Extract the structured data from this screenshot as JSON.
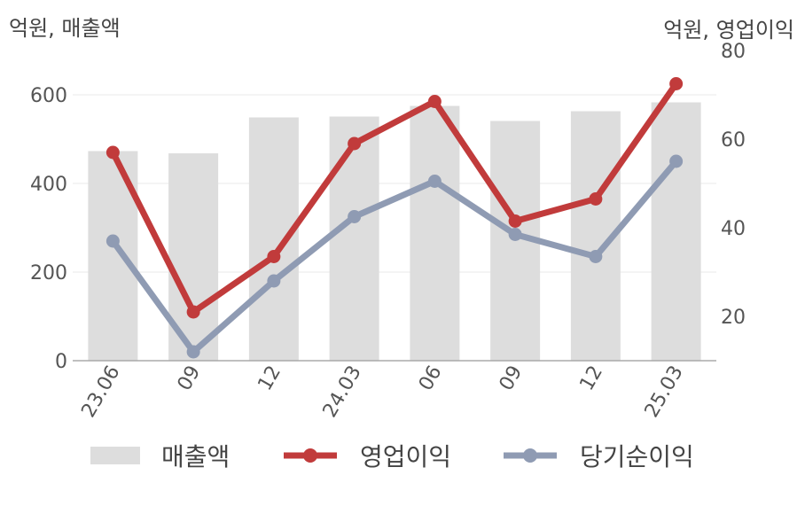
{
  "units": {
    "left": "억원, 매출액",
    "right": "억원, 영업이익"
  },
  "chart_data": {
    "type": "bar+line",
    "categories": [
      "23.06",
      "09",
      "12",
      "24.03",
      "06",
      "09",
      "12",
      "25.03"
    ],
    "left_axis": {
      "ylim": [
        0,
        700
      ],
      "ticks": [
        0,
        200,
        400,
        600
      ]
    },
    "right_axis": {
      "ylim": [
        10,
        80
      ],
      "ticks": [
        20,
        40,
        60,
        80
      ]
    },
    "series": [
      {
        "name": "매출액",
        "type": "bar",
        "axis": "left",
        "color": "#dddddd",
        "values": [
          473,
          468,
          549,
          551,
          575,
          541,
          563,
          583
        ]
      },
      {
        "name": "영업이익",
        "type": "line",
        "axis": "right",
        "color": "#c13b3b",
        "values": [
          57,
          21,
          33.5,
          59,
          68.5,
          41.5,
          46.5,
          72.5
        ]
      },
      {
        "name": "당기순이익",
        "type": "line",
        "axis": "right",
        "color": "#8f9bb3",
        "values": [
          37,
          12,
          28,
          42.5,
          50.5,
          38.5,
          33.5,
          55
        ]
      }
    ],
    "grid": true,
    "legend": "bottom"
  }
}
